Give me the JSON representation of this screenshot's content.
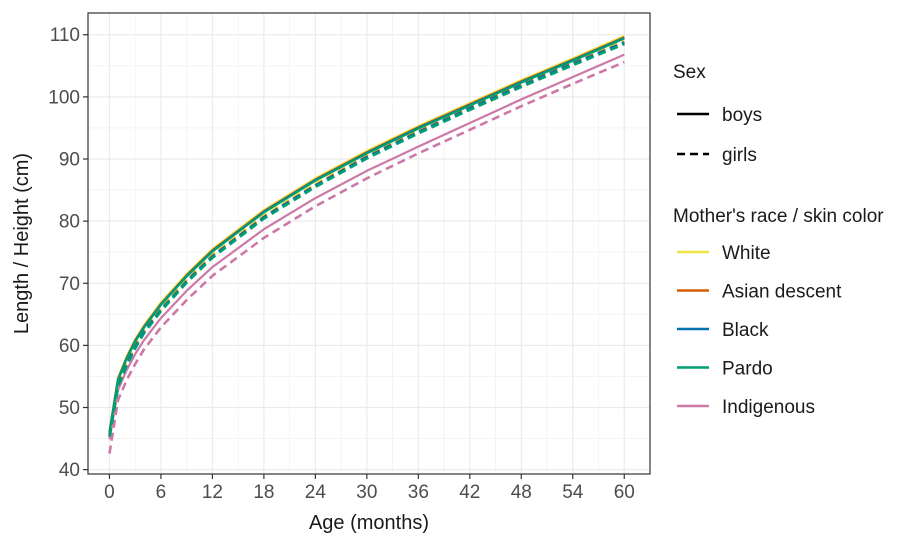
{
  "chart_data": {
    "type": "line",
    "xlabel": "Age (months)",
    "ylabel": "Length / Height (cm)",
    "xlim": [
      -2.5,
      63
    ],
    "ylim": [
      39.3,
      113.5
    ],
    "xticks": [
      0,
      6,
      12,
      18,
      24,
      30,
      36,
      42,
      48,
      54,
      60
    ],
    "yticks": [
      40,
      50,
      60,
      70,
      80,
      90,
      100,
      110
    ],
    "grid": true,
    "x": [
      0,
      1,
      2,
      3,
      4,
      6,
      9,
      12,
      18,
      24,
      30,
      36,
      42,
      48,
      54,
      60
    ],
    "legend": {
      "position": "right",
      "sex": {
        "title": "Sex",
        "items": [
          {
            "label": "boys",
            "linetype": "solid"
          },
          {
            "label": "girls",
            "linetype": "dashed"
          }
        ]
      },
      "race": {
        "title": "Mother's race / skin color",
        "items": [
          {
            "label": "White",
            "color": "#F0E442"
          },
          {
            "label": "Asian descent",
            "color": "#D55E00"
          },
          {
            "label": "Black",
            "color": "#0072B2"
          },
          {
            "label": "Pardo",
            "color": "#009E73"
          },
          {
            "label": "Indigenous",
            "color": "#CC79A7"
          }
        ]
      }
    },
    "series": [
      {
        "race": "White",
        "sex": "boys",
        "color": "#F0E442",
        "dash": false,
        "values": [
          46.3,
          54.8,
          58.2,
          61.0,
          63.2,
          66.9,
          71.5,
          75.5,
          81.8,
          86.9,
          91.3,
          95.3,
          99.0,
          102.7,
          106.2,
          109.8
        ]
      },
      {
        "race": "White",
        "sex": "girls",
        "color": "#F0E442",
        "dash": true,
        "values": [
          45.7,
          53.8,
          57.2,
          60.0,
          62.4,
          66.0,
          70.6,
          74.6,
          80.9,
          86.0,
          90.6,
          94.6,
          98.4,
          102.1,
          105.6,
          109.0
        ]
      },
      {
        "race": "Asian descent",
        "sex": "boys",
        "color": "#D55E00",
        "dash": false,
        "values": [
          46.1,
          54.6,
          58.0,
          60.8,
          63.0,
          66.7,
          71.3,
          75.3,
          81.6,
          86.7,
          91.1,
          95.1,
          98.8,
          102.5,
          106.0,
          109.6
        ]
      },
      {
        "race": "Asian descent",
        "sex": "girls",
        "color": "#D55E00",
        "dash": true,
        "values": [
          45.5,
          53.6,
          57.0,
          59.8,
          62.2,
          65.8,
          70.4,
          74.4,
          80.7,
          85.8,
          90.4,
          94.4,
          98.2,
          101.9,
          105.4,
          108.8
        ]
      },
      {
        "race": "Black",
        "sex": "boys",
        "color": "#0072B2",
        "dash": false,
        "values": [
          46.0,
          54.5,
          57.9,
          60.7,
          62.9,
          66.6,
          71.2,
          75.2,
          81.5,
          86.6,
          91.0,
          95.0,
          98.7,
          102.4,
          105.9,
          109.5
        ]
      },
      {
        "race": "Black",
        "sex": "girls",
        "color": "#0072B2",
        "dash": true,
        "values": [
          45.4,
          53.5,
          56.9,
          59.7,
          62.1,
          65.7,
          70.3,
          74.3,
          80.6,
          85.7,
          90.3,
          94.3,
          98.1,
          101.8,
          105.3,
          108.7
        ]
      },
      {
        "race": "Pardo",
        "sex": "boys",
        "color": "#009E73",
        "dash": false,
        "values": [
          46.0,
          54.4,
          57.8,
          60.6,
          62.8,
          66.5,
          71.1,
          75.1,
          81.4,
          86.5,
          90.9,
          94.9,
          98.6,
          102.3,
          105.8,
          109.4
        ]
      },
      {
        "race": "Pardo",
        "sex": "girls",
        "color": "#009E73",
        "dash": true,
        "values": [
          45.3,
          53.3,
          56.7,
          59.5,
          61.9,
          65.5,
          70.1,
          74.1,
          80.4,
          85.5,
          90.1,
          94.1,
          97.9,
          101.6,
          105.1,
          108.5
        ]
      },
      {
        "race": "Indigenous",
        "sex": "boys",
        "color": "#CC79A7",
        "dash": false,
        "values": [
          44.9,
          52.8,
          56.0,
          58.6,
          60.8,
          64.4,
          68.8,
          72.6,
          78.7,
          83.7,
          88.1,
          92.0,
          95.8,
          99.6,
          103.2,
          106.8
        ]
      },
      {
        "race": "Indigenous",
        "sex": "girls",
        "color": "#CC79A7",
        "dash": true,
        "values": [
          42.6,
          51.2,
          54.4,
          57.0,
          59.3,
          62.9,
          67.3,
          71.2,
          77.3,
          82.4,
          86.9,
          90.9,
          94.7,
          98.5,
          102.1,
          105.6
        ]
      }
    ]
  }
}
